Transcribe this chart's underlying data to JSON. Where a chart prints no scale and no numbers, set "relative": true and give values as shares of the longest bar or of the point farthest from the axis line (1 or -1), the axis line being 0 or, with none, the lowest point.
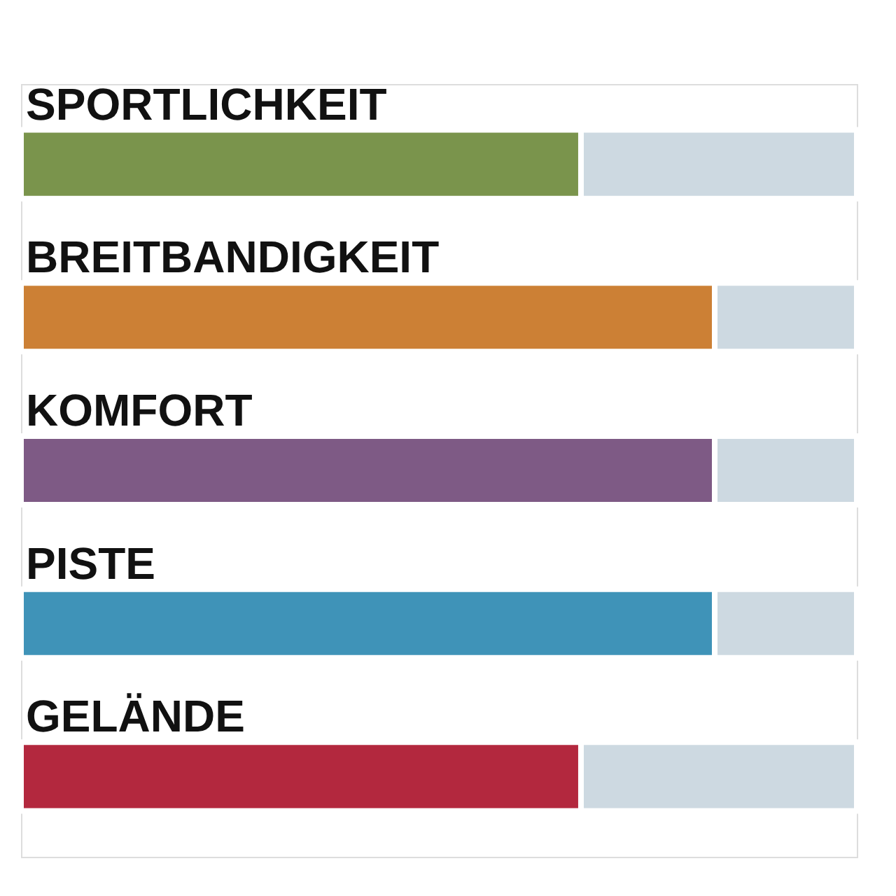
{
  "chart_data": {
    "type": "bar",
    "orientation": "horizontal",
    "stacked": true,
    "relative": true,
    "tick_labels": "y",
    "categories": [
      "SPORTLICHKEIT",
      "BREITBANDIGKEIT",
      "KOMFORT",
      "PISTE",
      "GELÄNDE"
    ],
    "series": [
      {
        "colors": [
          "#7a944c",
          "#cc8035",
          "#7e5a85",
          "#3f93b8",
          "#b3283e"
        ],
        "values": [
          0.67,
          0.83,
          0.83,
          0.83,
          0.67
        ]
      },
      {
        "color": "#cdd9e1",
        "values": [
          0.33,
          0.17,
          0.17,
          0.17,
          0.33
        ]
      }
    ]
  }
}
